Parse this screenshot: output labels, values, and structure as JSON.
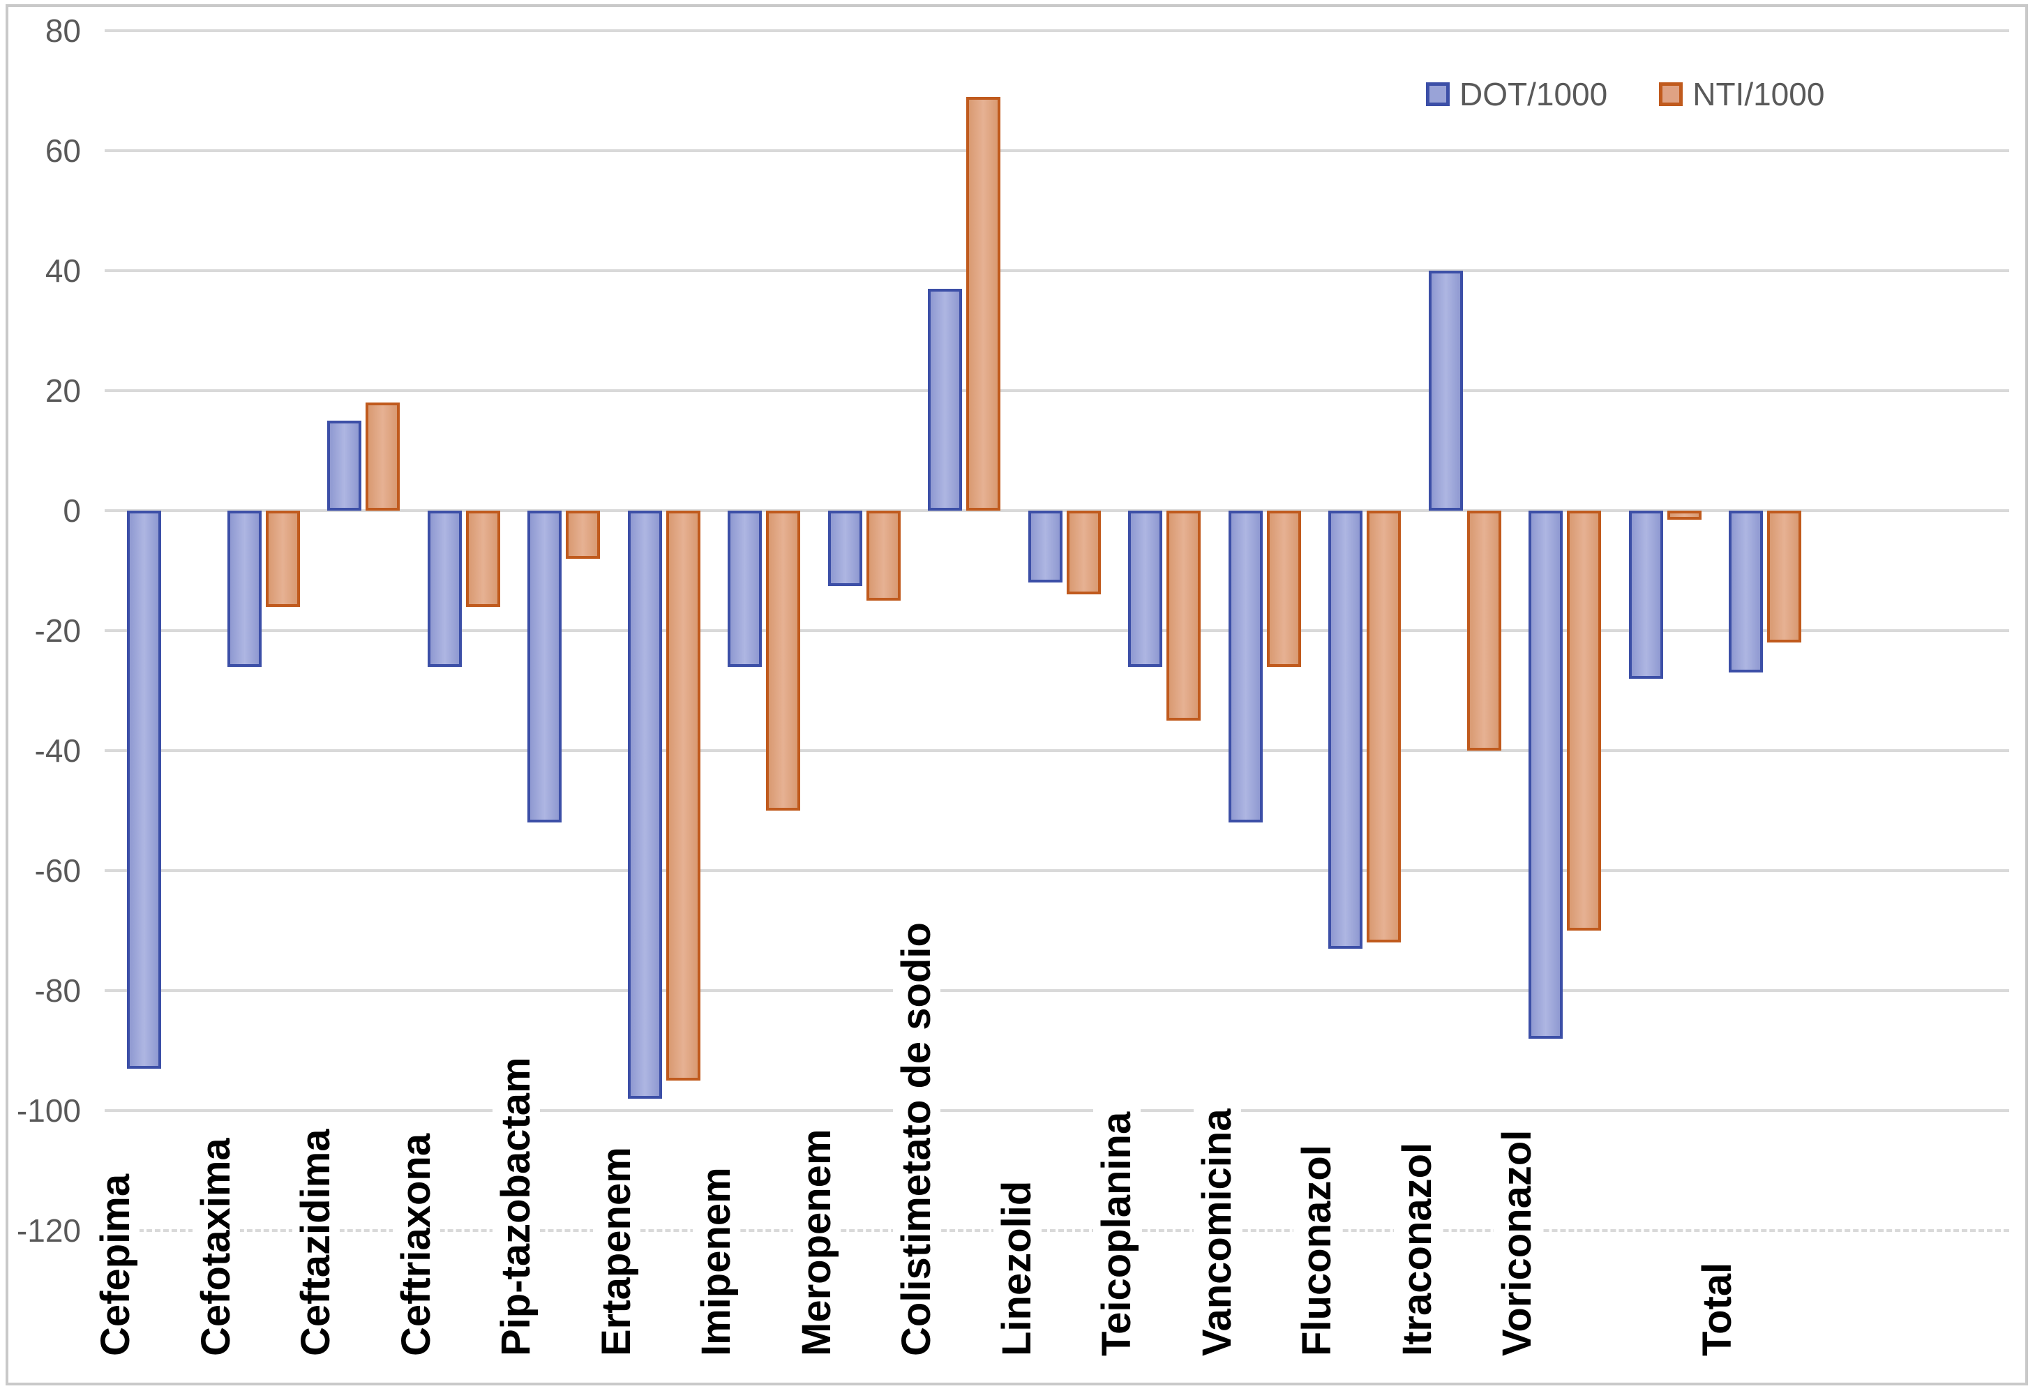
{
  "chart_data": {
    "type": "bar",
    "title": "",
    "xlabel": "",
    "ylabel": "",
    "categories": [
      "Cefepima",
      "Cefotaxima",
      "Ceftazidima",
      "Ceftriaxona",
      "Pip-tazobactam",
      "Ertapenem",
      "Imipenem",
      "Meropenem",
      "Colistimetato de sodio",
      "Linezolid",
      "Teicoplanina",
      "Vancomicina",
      "Fluconazol",
      "Itraconazol",
      "Voriconazol",
      "",
      "Total"
    ],
    "series": [
      {
        "name": "DOT/1000",
        "values": [
          -93,
          -26,
          15,
          -26,
          -52,
          -98,
          -26,
          -12.5,
          37,
          -12,
          -26,
          -52,
          -73,
          40,
          -88,
          -28,
          -27
        ]
      },
      {
        "name": "NTI/1000",
        "values": [
          null,
          -16,
          18,
          -16,
          -8,
          -95,
          -50,
          -15,
          69,
          -14,
          -35,
          -26,
          -72,
          -40,
          -70,
          -1.5,
          -22
        ]
      }
    ],
    "ylim": [
      -120,
      80
    ],
    "ytick_step": 20,
    "grid": true,
    "legend_position": "top-right"
  },
  "y_axis_ticks": [
    "80",
    "60",
    "40",
    "20",
    "0",
    "-20",
    "-40",
    "-60",
    "-80",
    "-100",
    "-120"
  ],
  "legend": {
    "items": [
      {
        "label": "DOT/1000"
      },
      {
        "label": "NTI/1000"
      }
    ]
  },
  "colors": {
    "dot_fill": "#99a3d7",
    "dot_border": "#3c4fa7",
    "nti_fill": "#dfa284",
    "nti_border": "#c05a1d",
    "gridline": "#d9d9d9",
    "axis_text": "#595959",
    "category_text": "#000000",
    "frame_border": "#c9c9c9"
  }
}
